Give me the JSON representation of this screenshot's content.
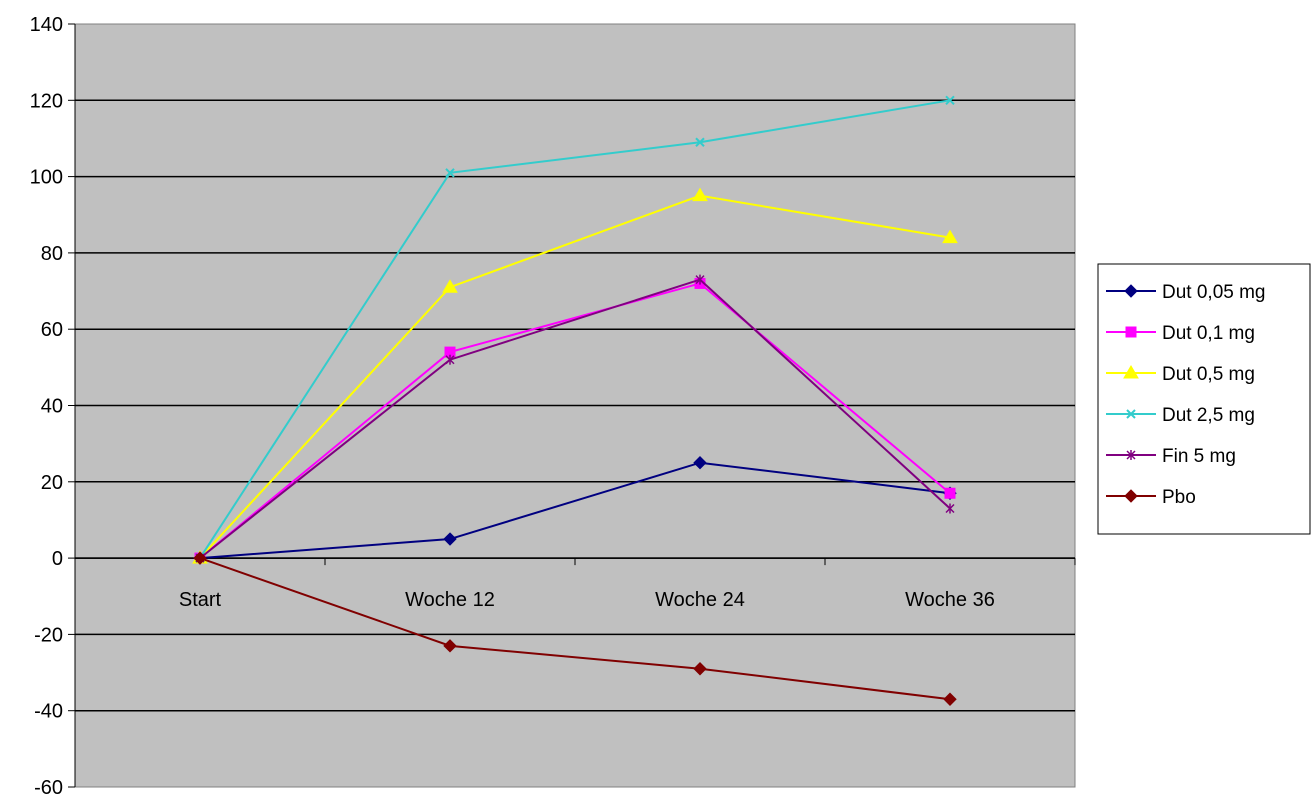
{
  "chart_data": {
    "type": "line",
    "title": "",
    "xlabel": "",
    "ylabel": "",
    "categories": [
      "Start",
      "Woche 12",
      "Woche 24",
      "Woche 36"
    ],
    "ylim": [
      -60,
      140
    ],
    "yticks": [
      140,
      120,
      100,
      80,
      60,
      40,
      20,
      0,
      -20,
      -40,
      -60
    ],
    "grid": true,
    "plot_background": "#c0c0c0",
    "legend_position": "right",
    "series": [
      {
        "name": "Dut 0,05 mg",
        "color": "#000080",
        "marker": "diamond",
        "values": [
          0,
          5,
          25,
          17
        ]
      },
      {
        "name": "Dut 0,1 mg",
        "color": "#ff00ff",
        "marker": "square",
        "values": [
          0,
          54,
          72,
          17
        ]
      },
      {
        "name": "Dut 0,5 mg",
        "color": "#ffff00",
        "marker": "triangle",
        "values": [
          0,
          71,
          95,
          84
        ]
      },
      {
        "name": "Dut 2,5 mg",
        "color": "#33cccc",
        "marker": "x",
        "values": [
          0,
          101,
          109,
          120
        ]
      },
      {
        "name": "Fin 5 mg",
        "color": "#800080",
        "marker": "star",
        "values": [
          0,
          52,
          73,
          13
        ]
      },
      {
        "name": "Pbo",
        "color": "#800000",
        "marker": "diamond",
        "values": [
          0,
          -23,
          -29,
          -37
        ]
      }
    ]
  }
}
